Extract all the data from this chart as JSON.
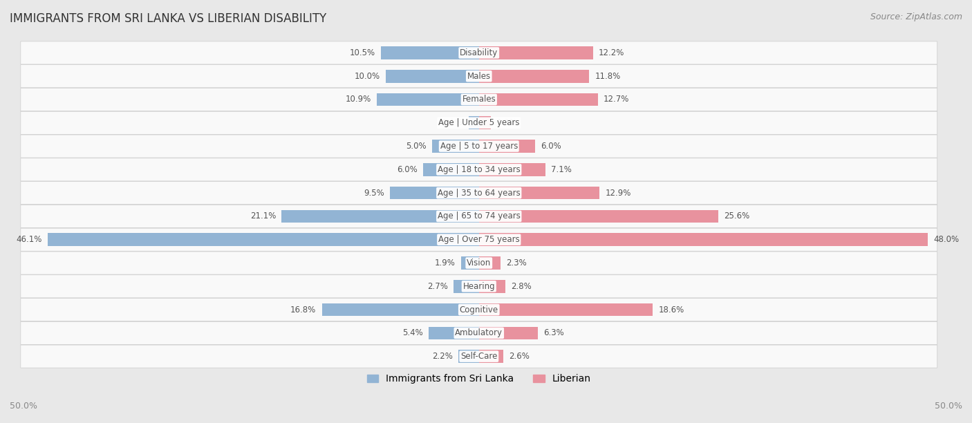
{
  "title": "IMMIGRANTS FROM SRI LANKA VS LIBERIAN DISABILITY",
  "source": "Source: ZipAtlas.com",
  "categories": [
    "Disability",
    "Males",
    "Females",
    "Age | Under 5 years",
    "Age | 5 to 17 years",
    "Age | 18 to 34 years",
    "Age | 35 to 64 years",
    "Age | 65 to 74 years",
    "Age | Over 75 years",
    "Vision",
    "Hearing",
    "Cognitive",
    "Ambulatory",
    "Self-Care"
  ],
  "sri_lanka_values": [
    10.5,
    10.0,
    10.9,
    1.1,
    5.0,
    6.0,
    9.5,
    21.1,
    46.1,
    1.9,
    2.7,
    16.8,
    5.4,
    2.2
  ],
  "liberian_values": [
    12.2,
    11.8,
    12.7,
    1.3,
    6.0,
    7.1,
    12.9,
    25.6,
    48.0,
    2.3,
    2.8,
    18.6,
    6.3,
    2.6
  ],
  "sri_lanka_color": "#92b4d4",
  "liberian_color": "#e8929e",
  "sri_lanka_label": "Immigrants from Sri Lanka",
  "liberian_label": "Liberian",
  "axis_limit": 50.0,
  "background_color": "#e8e8e8",
  "row_bg_color": "#f7f7f7",
  "row_alt_bg_color": "#ebebeb",
  "title_fontsize": 12,
  "label_fontsize": 8.5,
  "tick_fontsize": 9,
  "legend_fontsize": 10,
  "source_fontsize": 9
}
